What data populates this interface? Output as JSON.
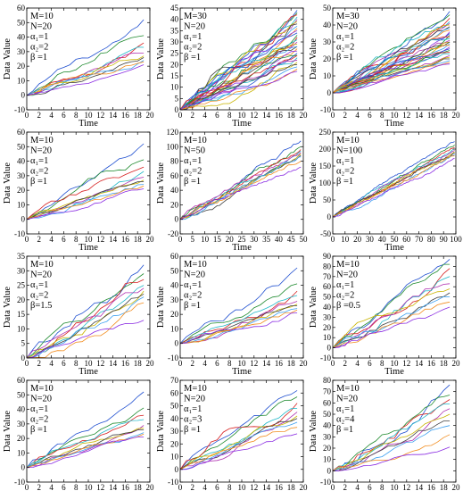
{
  "series_colors": [
    "#1f4fd0",
    "#1e8a2e",
    "#d62020",
    "#20b8c8",
    "#b030b0",
    "#c8b400",
    "#404040",
    "#3a9ff0",
    "#f28c1e",
    "#8a2be2"
  ],
  "chart_data": [
    {
      "type": "line",
      "xlabel": "Time",
      "ylabel": "Data Value",
      "xlim": [
        0,
        20
      ],
      "ylim": [
        -10,
        60
      ],
      "xticks": [
        0,
        2,
        4,
        6,
        8,
        10,
        12,
        14,
        16,
        18,
        20
      ],
      "yticks": [
        -10,
        0,
        10,
        20,
        30,
        40,
        50,
        60
      ],
      "annotation": [
        "M=10",
        "N=20",
        "α₁=1",
        "α₂=2",
        "β =1"
      ],
      "lines": 10,
      "points": 20,
      "end_values": [
        52,
        41,
        36,
        33,
        29,
        27,
        26,
        24,
        23,
        21
      ]
    },
    {
      "type": "line",
      "xlabel": "Time",
      "ylabel": "Data Value",
      "xlim": [
        0,
        20
      ],
      "ylim": [
        0,
        45
      ],
      "xticks": [
        0,
        2,
        4,
        6,
        8,
        10,
        12,
        14,
        16,
        18,
        20
      ],
      "yticks": [
        0,
        5,
        10,
        15,
        20,
        25,
        30,
        35,
        40,
        45
      ],
      "annotation": [
        "M=30",
        "N=20",
        "α₁=1",
        "α₂=2",
        "β =1"
      ],
      "lines": 30,
      "points": 20,
      "end_values": [
        44,
        43,
        42,
        41,
        40,
        39,
        38,
        37,
        36,
        35,
        34,
        33,
        32,
        31,
        30,
        29,
        28,
        28,
        27,
        26,
        25,
        24,
        24,
        23,
        22,
        21,
        20,
        19,
        18,
        17
      ]
    },
    {
      "type": "line",
      "xlabel": "Time",
      "ylabel": "Data Value",
      "xlim": [
        0,
        20
      ],
      "ylim": [
        -10,
        50
      ],
      "xticks": [
        0,
        2,
        4,
        6,
        8,
        10,
        12,
        14,
        16,
        18,
        20
      ],
      "yticks": [
        -10,
        0,
        10,
        20,
        30,
        40,
        50
      ],
      "annotation": [
        "M=30",
        "N=20",
        "α₁=1",
        "α₂=2",
        "β =1"
      ],
      "lines": 30,
      "points": 20,
      "end_values": [
        48,
        46,
        44,
        42,
        41,
        40,
        39,
        38,
        37,
        36,
        35,
        34,
        33,
        32,
        31,
        30,
        30,
        29,
        28,
        27,
        26,
        25,
        24,
        23,
        22,
        21,
        20,
        19,
        18,
        17
      ]
    },
    {
      "type": "line",
      "xlabel": "Time",
      "ylabel": "Data Value",
      "xlim": [
        0,
        20
      ],
      "ylim": [
        -10,
        60
      ],
      "xticks": [
        0,
        2,
        4,
        6,
        8,
        10,
        12,
        14,
        16,
        18,
        20
      ],
      "yticks": [
        -10,
        0,
        10,
        20,
        30,
        40,
        50,
        60
      ],
      "annotation": [
        "M=10",
        "N=20",
        "α₁=1",
        "α₂=2",
        "β =1"
      ],
      "lines": 10,
      "points": 20,
      "end_values": [
        52,
        41,
        36,
        33,
        29,
        27,
        26,
        24,
        23,
        21
      ]
    },
    {
      "type": "line",
      "xlabel": "Time",
      "ylabel": "Data Value",
      "xlim": [
        0,
        50
      ],
      "ylim": [
        -20,
        120
      ],
      "xticks": [
        0,
        5,
        10,
        15,
        20,
        25,
        30,
        35,
        40,
        45,
        50
      ],
      "yticks": [
        -20,
        0,
        20,
        40,
        60,
        80,
        100,
        120
      ],
      "annotation": [
        "M=10",
        "N=50",
        "α₁=1",
        "α₂=2",
        "β =1"
      ],
      "lines": 10,
      "points": 50,
      "end_values": [
        108,
        100,
        96,
        94,
        92,
        90,
        88,
        86,
        80,
        72
      ]
    },
    {
      "type": "line",
      "xlabel": "Time",
      "ylabel": "Data Value",
      "xlim": [
        0,
        100
      ],
      "ylim": [
        -50,
        250
      ],
      "xticks": [
        0,
        10,
        20,
        30,
        40,
        50,
        60,
        70,
        80,
        90,
        100
      ],
      "yticks": [
        -50,
        0,
        50,
        100,
        150,
        200,
        250
      ],
      "annotation": [
        "M=10",
        "N=100",
        "α₁=1",
        "α₂=2",
        "β =1"
      ],
      "lines": 10,
      "points": 100,
      "end_values": [
        222,
        212,
        205,
        200,
        196,
        192,
        188,
        185,
        180,
        172
      ]
    },
    {
      "type": "line",
      "xlabel": "Time",
      "ylabel": "Data Value",
      "xlim": [
        0,
        20
      ],
      "ylim": [
        0,
        35
      ],
      "xticks": [
        0,
        2,
        4,
        6,
        8,
        10,
        12,
        14,
        16,
        18,
        20
      ],
      "yticks": [
        0,
        5,
        10,
        15,
        20,
        25,
        30,
        35
      ],
      "annotation": [
        "M=10",
        "N=20",
        "α₁=1",
        "α₂=2",
        "β=1.5"
      ],
      "lines": 10,
      "points": 20,
      "end_values": [
        32,
        29,
        27,
        25,
        24,
        23,
        22,
        21,
        19,
        13
      ]
    },
    {
      "type": "line",
      "xlabel": "Time",
      "ylabel": "Data Value",
      "xlim": [
        0,
        20
      ],
      "ylim": [
        -10,
        60
      ],
      "xticks": [
        0,
        2,
        4,
        6,
        8,
        10,
        12,
        14,
        16,
        18,
        20
      ],
      "yticks": [
        -10,
        0,
        10,
        20,
        30,
        40,
        50,
        60
      ],
      "annotation": [
        "M=10",
        "N=20",
        "α₁=1",
        "α₂=2",
        "β =1"
      ],
      "lines": 10,
      "points": 20,
      "end_values": [
        52,
        41,
        36,
        33,
        29,
        27,
        26,
        24,
        23,
        21
      ]
    },
    {
      "type": "line",
      "xlabel": "Time",
      "ylabel": "Data Value",
      "xlim": [
        0,
        20
      ],
      "ylim": [
        -10,
        90
      ],
      "xticks": [
        0,
        2,
        4,
        6,
        8,
        10,
        12,
        14,
        16,
        18,
        20
      ],
      "yticks": [
        -10,
        0,
        10,
        20,
        30,
        40,
        50,
        60,
        70,
        80,
        90
      ],
      "annotation": [
        "M=10",
        "N=20",
        "α₁=1",
        "α₂=2",
        "β =0.5"
      ],
      "lines": 10,
      "points": 20,
      "end_values": [
        87,
        82,
        78,
        70,
        63,
        58,
        54,
        50,
        45,
        40
      ]
    },
    {
      "type": "line",
      "xlabel": "Time",
      "ylabel": "Data Value",
      "xlim": [
        0,
        20
      ],
      "ylim": [
        -10,
        60
      ],
      "xticks": [
        0,
        2,
        4,
        6,
        8,
        10,
        12,
        14,
        16,
        18,
        20
      ],
      "yticks": [
        -10,
        0,
        10,
        20,
        30,
        40,
        50,
        60
      ],
      "annotation": [
        "M=10",
        "N=20",
        "α₁=1",
        "α₂=2",
        "β =1"
      ],
      "lines": 10,
      "points": 20,
      "end_values": [
        52,
        41,
        36,
        33,
        29,
        27,
        26,
        24,
        23,
        21
      ]
    },
    {
      "type": "line",
      "xlabel": "Time",
      "ylabel": "Data Value",
      "xlim": [
        0,
        20
      ],
      "ylim": [
        -10,
        70
      ],
      "xticks": [
        0,
        2,
        4,
        6,
        8,
        10,
        12,
        14,
        16,
        18,
        20
      ],
      "yticks": [
        -10,
        0,
        10,
        20,
        30,
        40,
        50,
        60,
        70
      ],
      "annotation": [
        "M=10",
        "N=20",
        "α₁=1",
        "α₂=3",
        "β =1"
      ],
      "lines": 10,
      "points": 20,
      "end_values": [
        62,
        57,
        52,
        48,
        45,
        42,
        40,
        37,
        33,
        28
      ]
    },
    {
      "type": "line",
      "xlabel": "Time",
      "ylabel": "Data Value",
      "xlim": [
        0,
        20
      ],
      "ylim": [
        -10,
        80
      ],
      "xticks": [
        0,
        2,
        4,
        6,
        8,
        10,
        12,
        14,
        16,
        18,
        20
      ],
      "yticks": [
        -10,
        0,
        10,
        20,
        30,
        40,
        50,
        60,
        70,
        80
      ],
      "annotation": [
        "M=10",
        "N=20",
        "α₁=1",
        "α₂=4",
        "β =1"
      ],
      "lines": 10,
      "points": 20,
      "end_values": [
        76,
        67,
        63,
        59,
        55,
        50,
        44,
        40,
        32,
        21
      ]
    }
  ]
}
